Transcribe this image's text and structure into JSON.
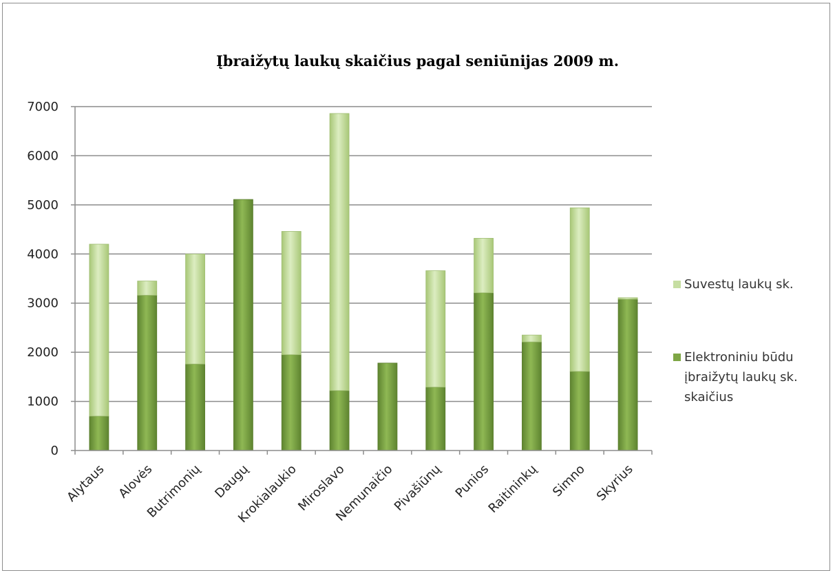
{
  "chart_data": {
    "type": "bar",
    "stacked": true,
    "title": "Įbraižytų laukų skaičius pagal seniūnijas 2009 m.",
    "categories": [
      "Alytaus",
      "Alovės",
      "Butrimonių",
      "Daugų",
      "Krokialaukio",
      "Miroslavo",
      "Nemunaičio",
      "Pivašiūnų",
      "Punios",
      "Raitininkų",
      "Simno",
      "Skyrius"
    ],
    "series": [
      {
        "name": "Elektroniniu būdu įbraižytų laukų sk. skaičius",
        "color": "#7ea645",
        "values": [
          700,
          3160,
          1760,
          5110,
          1950,
          1220,
          1780,
          1290,
          3210,
          2210,
          1610,
          3080
        ]
      },
      {
        "name": "Suvestų laukų sk.",
        "color": "#c6dea2",
        "values": [
          3500,
          290,
          2240,
          0,
          2510,
          5640,
          0,
          2370,
          1110,
          140,
          3330,
          30
        ]
      }
    ],
    "ylim": [
      0,
      7000
    ],
    "yticks": [
      "0",
      "1000",
      "2000",
      "3000",
      "4000",
      "5000",
      "6000",
      "7000"
    ],
    "grid": true,
    "legend_position": "right",
    "legend": [
      {
        "lines": [
          "Suvestų  laukų sk."
        ],
        "color": "#c6dea2"
      },
      {
        "lines": [
          "Elektroniniu būdu",
          "įbraižytų laukų sk.",
          "skaičius"
        ],
        "color": "#7ea645"
      }
    ]
  }
}
